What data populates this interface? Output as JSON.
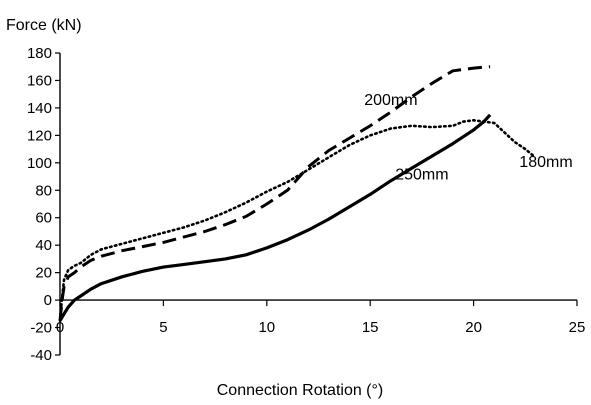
{
  "chart_data": {
    "type": "line",
    "title": "",
    "ylabel": "Force (kN)",
    "xlabel": "Connection Rotation (°)",
    "xlim": [
      0,
      25
    ],
    "ylim": [
      -40,
      180
    ],
    "xticks": [
      0,
      5,
      10,
      15,
      20,
      25
    ],
    "xtick_labels": [
      "0",
      "5",
      "10",
      "15",
      "20",
      "25"
    ],
    "yticks": [
      -40,
      -20,
      0,
      20,
      40,
      60,
      80,
      100,
      120,
      140,
      160,
      180
    ],
    "ytick_labels": [
      "-40",
      "-20",
      "0",
      "20",
      "40",
      "60",
      "80",
      "100",
      "120",
      "140",
      "160",
      "180"
    ],
    "grid": false,
    "legend": "none",
    "series": [
      {
        "name": "200mm",
        "line_style": "dashed",
        "label_at": [
          16.0,
          142
        ],
        "points": [
          [
            0.0,
            -15
          ],
          [
            0.1,
            0
          ],
          [
            0.2,
            10
          ],
          [
            0.4,
            17
          ],
          [
            0.7,
            20
          ],
          [
            1.0,
            24
          ],
          [
            1.5,
            29
          ],
          [
            2.0,
            32
          ],
          [
            3.0,
            36
          ],
          [
            4.0,
            39
          ],
          [
            5.0,
            42
          ],
          [
            6.0,
            46
          ],
          [
            7.0,
            50
          ],
          [
            8.0,
            55
          ],
          [
            9.0,
            61
          ],
          [
            10.0,
            70
          ],
          [
            11.0,
            80
          ],
          [
            12.0,
            97
          ],
          [
            13.0,
            109
          ],
          [
            14.0,
            118
          ],
          [
            15.0,
            127
          ],
          [
            16.0,
            137
          ],
          [
            17.0,
            148
          ],
          [
            18.0,
            158
          ],
          [
            19.0,
            167
          ],
          [
            20.0,
            169
          ],
          [
            20.8,
            170
          ]
        ]
      },
      {
        "name": "180mm",
        "line_style": "dotted",
        "label_at": [
          23.5,
          97
        ],
        "points": [
          [
            0.0,
            -15
          ],
          [
            0.1,
            2
          ],
          [
            0.2,
            15
          ],
          [
            0.4,
            22
          ],
          [
            0.7,
            25
          ],
          [
            1.0,
            27
          ],
          [
            1.5,
            33
          ],
          [
            2.0,
            37
          ],
          [
            3.0,
            41
          ],
          [
            4.0,
            45
          ],
          [
            5.0,
            49
          ],
          [
            6.0,
            53
          ],
          [
            7.0,
            58
          ],
          [
            8.0,
            64
          ],
          [
            9.0,
            71
          ],
          [
            10.0,
            79
          ],
          [
            11.0,
            86
          ],
          [
            12.0,
            95
          ],
          [
            13.0,
            104
          ],
          [
            14.0,
            113
          ],
          [
            15.0,
            120
          ],
          [
            16.0,
            125
          ],
          [
            17.0,
            127
          ],
          [
            18.0,
            126
          ],
          [
            19.0,
            127
          ],
          [
            19.5,
            130
          ],
          [
            20.0,
            131
          ],
          [
            20.5,
            130
          ],
          [
            21.0,
            129
          ],
          [
            21.5,
            122
          ],
          [
            22.0,
            115
          ],
          [
            22.5,
            110
          ],
          [
            22.9,
            105
          ]
        ]
      },
      {
        "name": "250mm",
        "line_style": "solid",
        "label_at": [
          17.5,
          88
        ],
        "points": [
          [
            0.0,
            -15
          ],
          [
            0.2,
            -10
          ],
          [
            0.4,
            -5
          ],
          [
            0.7,
            0
          ],
          [
            1.0,
            3
          ],
          [
            1.5,
            8
          ],
          [
            2.0,
            12
          ],
          [
            3.0,
            17
          ],
          [
            4.0,
            21
          ],
          [
            5.0,
            24
          ],
          [
            6.0,
            26
          ],
          [
            7.0,
            28
          ],
          [
            8.0,
            30
          ],
          [
            9.0,
            33
          ],
          [
            10.0,
            38
          ],
          [
            11.0,
            44
          ],
          [
            12.0,
            51
          ],
          [
            13.0,
            59
          ],
          [
            14.0,
            68
          ],
          [
            15.0,
            77
          ],
          [
            16.0,
            87
          ],
          [
            17.0,
            96
          ],
          [
            18.0,
            105
          ],
          [
            19.0,
            114
          ],
          [
            20.0,
            124
          ],
          [
            20.5,
            130
          ],
          [
            20.8,
            135
          ]
        ]
      }
    ]
  }
}
